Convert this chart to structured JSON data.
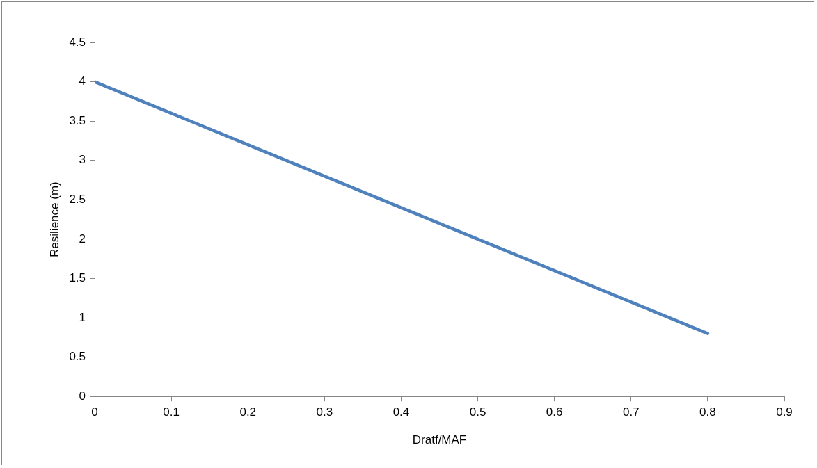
{
  "chart_data": {
    "type": "line",
    "xlabel": "Dratf/MAF",
    "ylabel": "Resilience (m)",
    "x": [
      0,
      0.1,
      0.2,
      0.3,
      0.4,
      0.5,
      0.6,
      0.7,
      0.8
    ],
    "series": [
      {
        "color": "#4f81bd",
        "values": [
          4,
          3.6,
          3.2,
          2.8,
          2.4,
          2,
          1.6,
          1.2,
          0.8
        ]
      }
    ],
    "xlim": [
      0,
      0.9
    ],
    "xticks": [
      0,
      0.1,
      0.2,
      0.3,
      0.4,
      0.5,
      0.6,
      0.7,
      0.8,
      0.9
    ],
    "ylim": [
      0,
      4.5
    ],
    "yticks": [
      0,
      0.5,
      1,
      1.5,
      2,
      2.5,
      3,
      3.5,
      4,
      4.5
    ],
    "grid": false,
    "legend": false,
    "marker": "none",
    "line_style": "solid"
  }
}
